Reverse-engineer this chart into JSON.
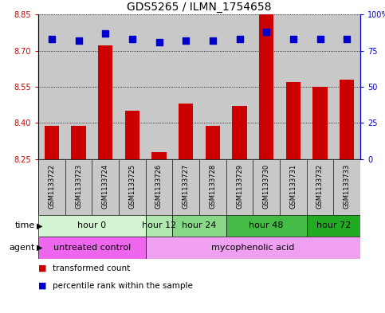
{
  "title": "GDS5265 / ILMN_1754658",
  "samples": [
    "GSM1133722",
    "GSM1133723",
    "GSM1133724",
    "GSM1133725",
    "GSM1133726",
    "GSM1133727",
    "GSM1133728",
    "GSM1133729",
    "GSM1133730",
    "GSM1133731",
    "GSM1133732",
    "GSM1133733"
  ],
  "bar_values": [
    8.39,
    8.39,
    8.72,
    8.45,
    8.28,
    8.48,
    8.39,
    8.47,
    8.85,
    8.57,
    8.55,
    8.58
  ],
  "percentile_values": [
    83,
    82,
    87,
    83,
    81,
    82,
    82,
    83,
    88,
    83,
    83,
    83
  ],
  "bar_bottom": 8.25,
  "ylim_left": [
    8.25,
    8.85
  ],
  "ylim_right": [
    0,
    100
  ],
  "yticks_left": [
    8.25,
    8.4,
    8.55,
    8.7,
    8.85
  ],
  "yticks_right": [
    0,
    25,
    50,
    75,
    100
  ],
  "bar_color": "#cc0000",
  "dot_color": "#0000cc",
  "col_bg_color": "#c8c8c8",
  "time_groups": [
    {
      "label": "hour 0",
      "start": 0,
      "end": 3,
      "color": "#d4f5d4"
    },
    {
      "label": "hour 12",
      "start": 4,
      "end": 4,
      "color": "#b0e8b0"
    },
    {
      "label": "hour 24",
      "start": 5,
      "end": 6,
      "color": "#88d888"
    },
    {
      "label": "hour 48",
      "start": 7,
      "end": 9,
      "color": "#44bb44"
    },
    {
      "label": "hour 72",
      "start": 10,
      "end": 11,
      "color": "#22aa22"
    }
  ],
  "agent_groups": [
    {
      "label": "untreated control",
      "start": 0,
      "end": 3,
      "color": "#ee66ee"
    },
    {
      "label": "mycophenolic acid",
      "start": 4,
      "end": 11,
      "color": "#f0a0f0"
    }
  ],
  "legend_items": [
    {
      "label": "transformed count",
      "color": "#cc0000"
    },
    {
      "label": "percentile rank within the sample",
      "color": "#0000cc"
    }
  ],
  "tick_color_left": "#cc0000",
  "tick_color_right": "#0000cc",
  "bar_width": 0.55,
  "dot_size": 35,
  "title_fontsize": 10,
  "tick_fontsize": 7,
  "label_fontsize": 7.5,
  "row_fontsize": 8
}
